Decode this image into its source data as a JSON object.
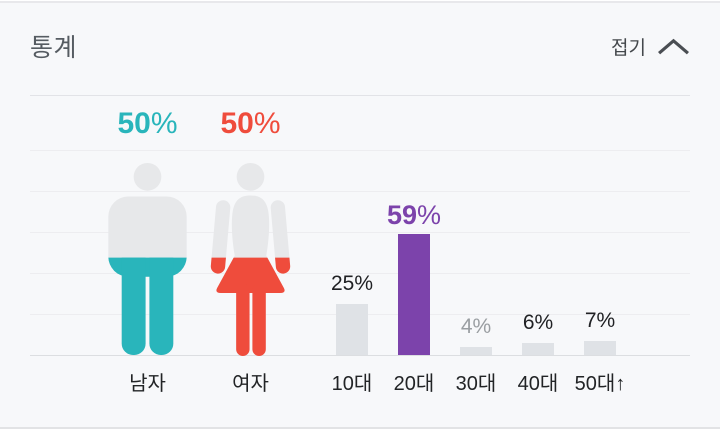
{
  "header": {
    "title": "통계",
    "collapse_label": "접기"
  },
  "colors": {
    "male": "#29b5bb",
    "female": "#ef4c3c",
    "highlight": "#7c43ab",
    "bar": "#dfe2e6",
    "silhouette": "#e7e8ea",
    "muted_label": "#9a9ea2",
    "dark_label": "#202124"
  },
  "gender_chart": {
    "items": [
      {
        "label": "남자",
        "value": 50,
        "value_text": "50",
        "unit": "%",
        "icon": "male-pictogram"
      },
      {
        "label": "여자",
        "value": 50,
        "value_text": "50",
        "unit": "%",
        "icon": "female-pictogram"
      }
    ]
  },
  "age_chart": {
    "categories": [
      "10대",
      "20대",
      "30대",
      "40대",
      "50대↑"
    ],
    "values": [
      25,
      59,
      4,
      6,
      7
    ],
    "unit": "%",
    "highlight_index": 1,
    "muted_label_indexes": [
      2
    ]
  },
  "chart_data": [
    {
      "type": "bar",
      "variant": "pictogram",
      "title": "통계",
      "categories": [
        "남자",
        "여자"
      ],
      "values": [
        50,
        50
      ],
      "unit": "%",
      "ylim": [
        0,
        100
      ],
      "colors": [
        "#29b5bb",
        "#ef4c3c"
      ],
      "grid": true
    },
    {
      "type": "bar",
      "title": "통계",
      "categories": [
        "10대",
        "20대",
        "30대",
        "40대",
        "50대↑"
      ],
      "values": [
        25,
        59,
        4,
        6,
        7
      ],
      "unit": "%",
      "ylim": [
        0,
        100
      ],
      "grid": true,
      "highlight_category": "20대",
      "highlight_color": "#7c43ab",
      "bar_color": "#dfe2e6"
    }
  ]
}
